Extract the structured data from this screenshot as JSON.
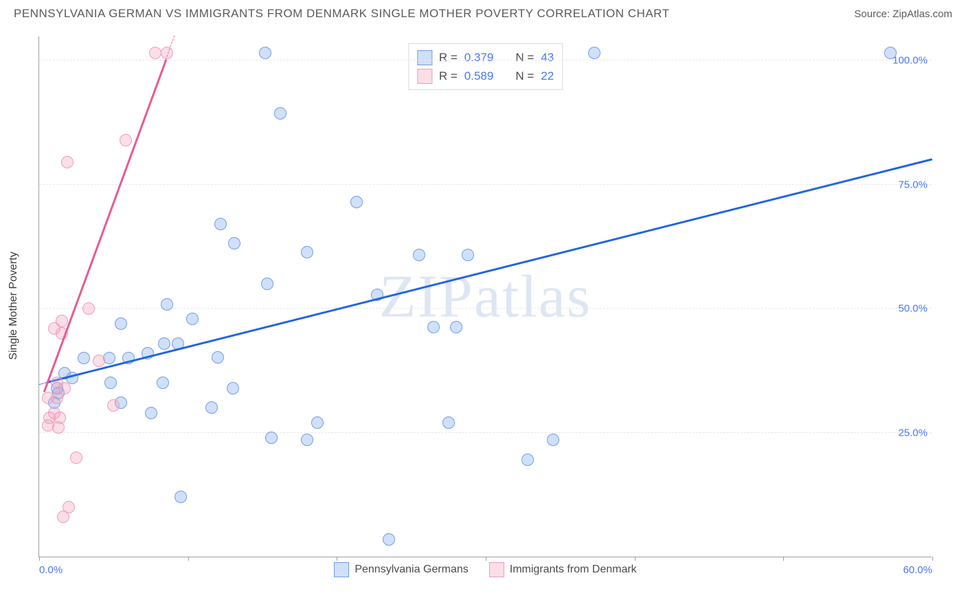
{
  "header": {
    "title": "PENNSYLVANIA GERMAN VS IMMIGRANTS FROM DENMARK SINGLE MOTHER POVERTY CORRELATION CHART",
    "source_prefix": "Source: ",
    "source_name": "ZipAtlas.com"
  },
  "chart": {
    "type": "scatter",
    "ylabel": "Single Mother Poverty",
    "watermark_a": "ZIP",
    "watermark_b": "atlas",
    "background_color": "#ffffff",
    "grid_color": "#e6e6e6",
    "axis_color": "#9aa0a6",
    "tick_label_color": "#4876f5",
    "xlim": [
      0,
      60
    ],
    "ylim": [
      0,
      105
    ],
    "yticks": [
      {
        "v": 25,
        "label": "25.0%"
      },
      {
        "v": 50,
        "label": "50.0%"
      },
      {
        "v": 75,
        "label": "75.0%"
      },
      {
        "v": 100,
        "label": "100.0%"
      }
    ],
    "xticks": [
      {
        "v": 0,
        "label": "0.0%"
      },
      {
        "v": 10,
        "label": ""
      },
      {
        "v": 20,
        "label": ""
      },
      {
        "v": 30,
        "label": ""
      },
      {
        "v": 40,
        "label": ""
      },
      {
        "v": 50,
        "label": ""
      },
      {
        "v": 60,
        "label": "60.0%"
      }
    ],
    "marker_radius": 9,
    "marker_stroke_width": 1.5,
    "series": [
      {
        "name": "Pennsylvania Germans",
        "fill": "rgba(120,165,235,0.35)",
        "stroke": "#6e9de3",
        "trend_color": "#1f63e6",
        "trend": {
          "x1": 0.5,
          "y1": 35,
          "x2": 60,
          "y2": 80
        },
        "trend_dash": {
          "x1": 0,
          "y1": 34.6,
          "x2": 0.5,
          "y2": 35
        },
        "R_label": "R = ",
        "R": "0.379",
        "N_label": "N = ",
        "N": "43",
        "points": [
          {
            "x": 15.2,
            "y": 101.5
          },
          {
            "x": 37.3,
            "y": 101.5
          },
          {
            "x": 57.2,
            "y": 101.5
          },
          {
            "x": 16.2,
            "y": 89.3
          },
          {
            "x": 21.3,
            "y": 71.5
          },
          {
            "x": 12.2,
            "y": 67.0
          },
          {
            "x": 13.1,
            "y": 63.2
          },
          {
            "x": 18.0,
            "y": 61.3
          },
          {
            "x": 25.5,
            "y": 60.8
          },
          {
            "x": 28.8,
            "y": 60.8
          },
          {
            "x": 15.3,
            "y": 55.0
          },
          {
            "x": 22.7,
            "y": 52.8
          },
          {
            "x": 8.6,
            "y": 50.8
          },
          {
            "x": 10.3,
            "y": 48.0
          },
          {
            "x": 5.5,
            "y": 47.0
          },
          {
            "x": 26.5,
            "y": 46.3
          },
          {
            "x": 28.0,
            "y": 46.3
          },
          {
            "x": 8.4,
            "y": 43.0
          },
          {
            "x": 9.3,
            "y": 43.0
          },
          {
            "x": 7.3,
            "y": 41.0
          },
          {
            "x": 12.0,
            "y": 40.2
          },
          {
            "x": 3.0,
            "y": 40.0
          },
          {
            "x": 4.7,
            "y": 40.0
          },
          {
            "x": 6.0,
            "y": 40.0
          },
          {
            "x": 1.7,
            "y": 37.0
          },
          {
            "x": 2.2,
            "y": 36.0
          },
          {
            "x": 4.8,
            "y": 35.0
          },
          {
            "x": 8.3,
            "y": 35.0
          },
          {
            "x": 13.0,
            "y": 34.0
          },
          {
            "x": 1.3,
            "y": 33.0
          },
          {
            "x": 1.0,
            "y": 31.0
          },
          {
            "x": 5.5,
            "y": 31.0
          },
          {
            "x": 11.6,
            "y": 30.0
          },
          {
            "x": 7.5,
            "y": 29.0
          },
          {
            "x": 18.7,
            "y": 27.0
          },
          {
            "x": 27.5,
            "y": 27.0
          },
          {
            "x": 15.6,
            "y": 24.0
          },
          {
            "x": 18.0,
            "y": 23.5
          },
          {
            "x": 34.5,
            "y": 23.5
          },
          {
            "x": 32.8,
            "y": 19.5
          },
          {
            "x": 9.5,
            "y": 12.0
          },
          {
            "x": 23.5,
            "y": 3.5
          },
          {
            "x": 1.2,
            "y": 34.0
          }
        ]
      },
      {
        "name": "Immigrants from Denmark",
        "fill": "rgba(243,160,190,0.35)",
        "stroke": "#ec9cbb",
        "trend_color": "#e75a95",
        "trend": {
          "x1": 0.3,
          "y1": 33,
          "x2": 8.5,
          "y2": 100
        },
        "trend_dash": {
          "x1": 8.5,
          "y1": 100,
          "x2": 9.1,
          "y2": 105
        },
        "R_label": "R = ",
        "R": "0.589",
        "N_label": "N = ",
        "N": "22",
        "points": [
          {
            "x": 7.8,
            "y": 101.5
          },
          {
            "x": 8.6,
            "y": 101.5
          },
          {
            "x": 5.8,
            "y": 84.0
          },
          {
            "x": 1.9,
            "y": 79.5
          },
          {
            "x": 3.3,
            "y": 50.0
          },
          {
            "x": 1.5,
            "y": 47.5
          },
          {
            "x": 1.0,
            "y": 46.0
          },
          {
            "x": 1.5,
            "y": 45.0
          },
          {
            "x": 4.0,
            "y": 39.5
          },
          {
            "x": 1.2,
            "y": 35.0
          },
          {
            "x": 1.7,
            "y": 34.0
          },
          {
            "x": 0.6,
            "y": 32.0
          },
          {
            "x": 1.2,
            "y": 32.0
          },
          {
            "x": 5.0,
            "y": 30.5
          },
          {
            "x": 1.0,
            "y": 29.0
          },
          {
            "x": 0.7,
            "y": 28.0
          },
          {
            "x": 1.4,
            "y": 28.0
          },
          {
            "x": 0.6,
            "y": 26.5
          },
          {
            "x": 1.3,
            "y": 26.0
          },
          {
            "x": 2.5,
            "y": 20.0
          },
          {
            "x": 2.0,
            "y": 10.0
          },
          {
            "x": 1.6,
            "y": 8.0
          }
        ]
      }
    ]
  },
  "legend_bottom": [
    {
      "label": "Pennsylvania Germans",
      "fill": "rgba(120,165,235,0.35)",
      "stroke": "#6e9de3"
    },
    {
      "label": "Immigrants from Denmark",
      "fill": "rgba(243,160,190,0.35)",
      "stroke": "#ec9cbb"
    }
  ]
}
